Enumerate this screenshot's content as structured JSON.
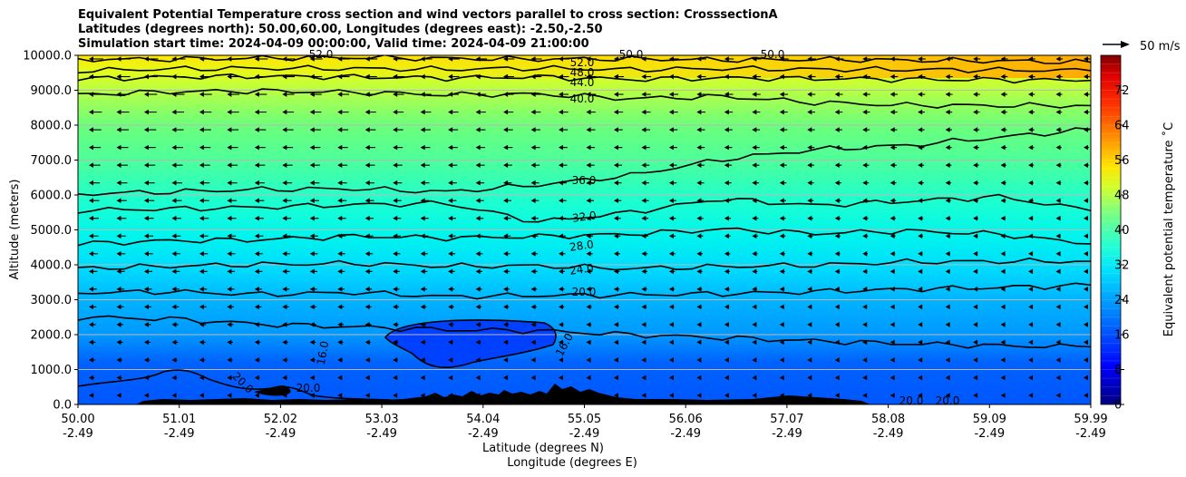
{
  "chart_data": {
    "type": "contour",
    "title_lines": [
      "Equivalent Potential Temperature cross section and wind vectors parallel to cross section: CrosssectionA",
      "Latitudes (degrees north): 50.00,60.00, Longitudes (degrees east): -2.50,-2.50",
      "Simulation start time: 2024-04-09 00:00:00, Valid time: 2024-04-09 21:00:00"
    ],
    "ylabel": "Altitude (meters)",
    "xlabel_lat": "Latitude (degrees N)",
    "xlabel_lon": "Longitude (degrees E)",
    "ylim": [
      0,
      10000
    ],
    "y_ticks": [
      "0.0",
      "1000.0",
      "2000.0",
      "3000.0",
      "4000.0",
      "5000.0",
      "6000.0",
      "7000.0",
      "8000.0",
      "9000.0",
      "10000.0"
    ],
    "x_ticks_lat": [
      "50.00",
      "51.01",
      "52.02",
      "53.03",
      "54.04",
      "55.05",
      "56.06",
      "57.07",
      "58.08",
      "59.09",
      "59.99"
    ],
    "x_ticks_lon": [
      "-2.49",
      "-2.49",
      "-2.49",
      "-2.49",
      "-2.49",
      "-2.49",
      "-2.49",
      "-2.49",
      "-2.49",
      "-2.49",
      "-2.49"
    ],
    "grid": "horizontal",
    "colorbar": {
      "label": "Equivalent potential temperature ˚C",
      "range": [
        0,
        80
      ],
      "ticks": [
        "0",
        "8",
        "16",
        "24",
        "32",
        "40",
        "48",
        "56",
        "64",
        "72"
      ]
    },
    "quiver_key_label": "50 m/s",
    "contour_labels": [
      "52.0",
      "48.0",
      "44.0",
      "40.0",
      "36.0",
      "32.0",
      "28.0",
      "24.0",
      "20.0",
      "16.0",
      "20.0",
      "20.0",
      "20.0",
      "52.0",
      "50.0",
      "50.0",
      "16.0",
      "20.0"
    ],
    "contour_lines": [
      {
        "level": 52,
        "label": "52.0",
        "altitude": [
          9880,
          9890,
          9920,
          9940,
          9910,
          9890,
          9900,
          9870,
          9880,
          9860,
          9840,
          9800
        ]
      },
      {
        "level": 48,
        "label": "48.0",
        "altitude": [
          9560,
          9610,
          9630,
          9620,
          9600,
          9630,
          9590,
          9620,
          9600,
          9590,
          9580,
          9560
        ]
      },
      {
        "level": 44,
        "label": "44.0",
        "altitude": [
          9320,
          9380,
          9400,
          9380,
          9350,
          9380,
          9310,
          9350,
          9330,
          9310,
          9300,
          9280
        ]
      },
      {
        "level": 40,
        "label": "40.0",
        "altitude": [
          8870,
          8960,
          8980,
          8940,
          8870,
          8890,
          8760,
          8820,
          8650,
          8570,
          8560,
          8560
        ]
      },
      {
        "level": 36,
        "label": "36.0",
        "altitude": [
          6030,
          6090,
          6160,
          6180,
          6090,
          6290,
          6560,
          7020,
          7300,
          7420,
          7650,
          7880
        ]
      },
      {
        "level": 32,
        "label": "32.0",
        "altitude": [
          5560,
          5600,
          5650,
          5720,
          5760,
          5230,
          5500,
          5890,
          5700,
          5820,
          5950,
          5550
        ]
      },
      {
        "level": 28,
        "label": "28.0",
        "altitude": [
          4600,
          4690,
          4720,
          4820,
          4770,
          4810,
          4880,
          5020,
          4900,
          4970,
          4880,
          4600
        ]
      },
      {
        "level": 24,
        "label": "24.0",
        "altitude": [
          3900,
          3960,
          4010,
          4040,
          3960,
          3970,
          3890,
          3950,
          3990,
          4080,
          4100,
          4100
        ]
      },
      {
        "level": 20,
        "label": "20.0",
        "altitude": [
          3200,
          3230,
          3150,
          3210,
          3090,
          3120,
          3140,
          3170,
          3230,
          3300,
          3350,
          3420
        ]
      },
      {
        "level": 16,
        "label": "16.0",
        "altitude": [
          2500,
          2450,
          2300,
          2220,
          2140,
          2110,
          2000,
          1910,
          1820,
          1740,
          1680,
          1650
        ]
      }
    ],
    "wind_vectors": "leftward (southward) winds, stronger aloft"
  }
}
